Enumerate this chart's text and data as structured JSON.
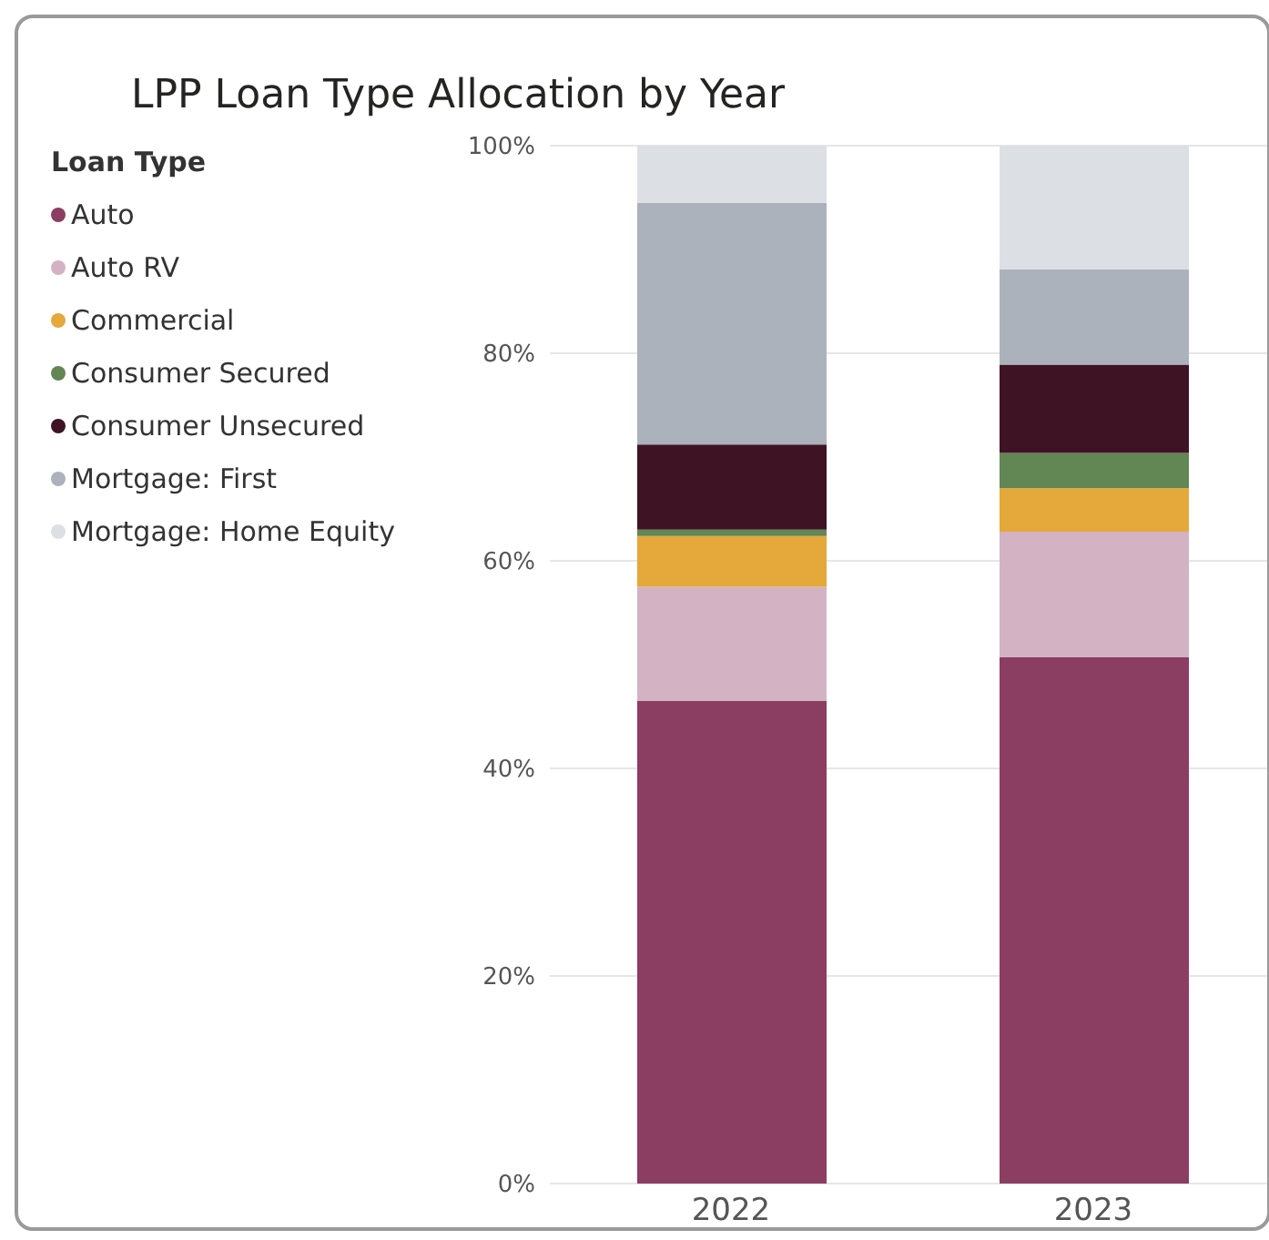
{
  "chart_data": {
    "type": "bar",
    "title": "LPP Loan Type Allocation by Year",
    "legend_title": "Loan Type",
    "categories": [
      "2022",
      "2023"
    ],
    "stacked": true,
    "ylim": [
      0,
      100
    ],
    "yticks": [
      {
        "value": 0,
        "label": "0%"
      },
      {
        "value": 20,
        "label": "20%"
      },
      {
        "value": 40,
        "label": "40%"
      },
      {
        "value": 60,
        "label": "60%"
      },
      {
        "value": 80,
        "label": "80%"
      },
      {
        "value": 100,
        "label": "100%"
      }
    ],
    "grid": "y",
    "legend": "left",
    "series": [
      {
        "name": "Auto",
        "color": "#8b3d62",
        "values": [
          46.5,
          50.7
        ]
      },
      {
        "name": "Auto RV",
        "color": "#d3b2c3",
        "values": [
          11.0,
          12.1
        ]
      },
      {
        "name": "Commercial",
        "color": "#e4a83b",
        "values": [
          4.9,
          4.2
        ]
      },
      {
        "name": "Consumer Secured",
        "color": "#628654",
        "values": [
          0.6,
          3.4
        ]
      },
      {
        "name": "Consumer Unsecured",
        "color": "#3e1424",
        "values": [
          8.2,
          8.5
        ]
      },
      {
        "name": "Mortgage: First",
        "color": "#abb2bb",
        "values": [
          23.3,
          9.2
        ]
      },
      {
        "name": "Mortgage: Home Equity",
        "color": "#dcdfe4",
        "values": [
          5.5,
          11.9
        ]
      }
    ]
  }
}
